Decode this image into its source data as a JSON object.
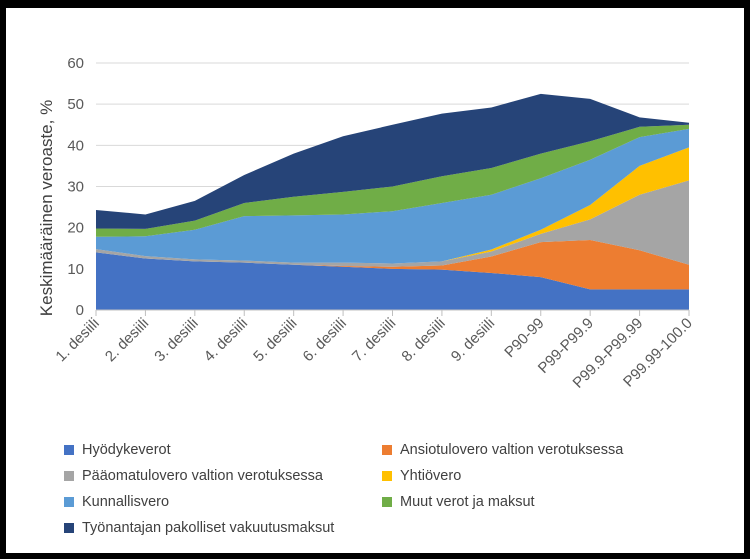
{
  "chart_data": {
    "type": "area",
    "stacked": true,
    "ylabel": "Keskimääräinen veroaste, %",
    "ylim": [
      0,
      60
    ],
    "yticks": [
      0,
      10,
      20,
      30,
      40,
      50,
      60
    ],
    "grid": true,
    "legend_position": "bottom",
    "categories": [
      "1. desiili",
      "2. desiili",
      "3. desiili",
      "4. desiili",
      "5. desiili",
      "6. desiili",
      "7. desiili",
      "8. desiili",
      "9. desiili",
      "P90-99",
      "P99-P99.9",
      "P99.9-P99.99",
      "P99.99-100.0"
    ],
    "series": [
      {
        "name": "Hyödykeverot",
        "color": "#4472C4",
        "values": [
          14,
          12.5,
          11.8,
          11.5,
          11,
          10.5,
          10,
          9.8,
          9,
          8,
          5,
          5,
          5
        ]
      },
      {
        "name": "Ansiotulovero valtion verotuksessa",
        "color": "#ED7D31",
        "values": [
          0,
          0,
          0,
          0,
          0,
          0.2,
          0.5,
          1,
          4,
          8.5,
          12,
          9.5,
          6
        ]
      },
      {
        "name": "Pääomatulovero valtion verotuksessa",
        "color": "#A5A5A5",
        "values": [
          0.8,
          0.6,
          0.5,
          0.5,
          0.5,
          0.8,
          0.8,
          1,
          1.2,
          2,
          5,
          13.5,
          20.5
        ]
      },
      {
        "name": "Yhtiövero",
        "color": "#FFC000",
        "values": [
          0,
          0,
          0,
          0,
          0,
          0,
          0,
          0,
          0.5,
          1,
          3.5,
          7,
          8
        ]
      },
      {
        "name": "Kunnallisvero",
        "color": "#5B9BD5",
        "values": [
          3,
          4.8,
          7.2,
          10.8,
          11.5,
          11.7,
          12.7,
          14.2,
          13.3,
          12.5,
          11,
          7,
          4.5
        ]
      },
      {
        "name": "Muut verot ja maksut",
        "color": "#70AD47",
        "values": [
          2,
          1.8,
          2.2,
          3.2,
          4.5,
          5.5,
          6,
          6.5,
          6.5,
          6,
          4.5,
          2.5,
          1
        ]
      },
      {
        "name": "Työnantajan pakolliset vakuutusmaksut",
        "color": "#264478",
        "values": [
          4.5,
          3.5,
          4.8,
          6.8,
          10.5,
          13.5,
          15,
          15.2,
          14.7,
          14.5,
          10.3,
          2.3,
          0.5
        ]
      }
    ]
  }
}
